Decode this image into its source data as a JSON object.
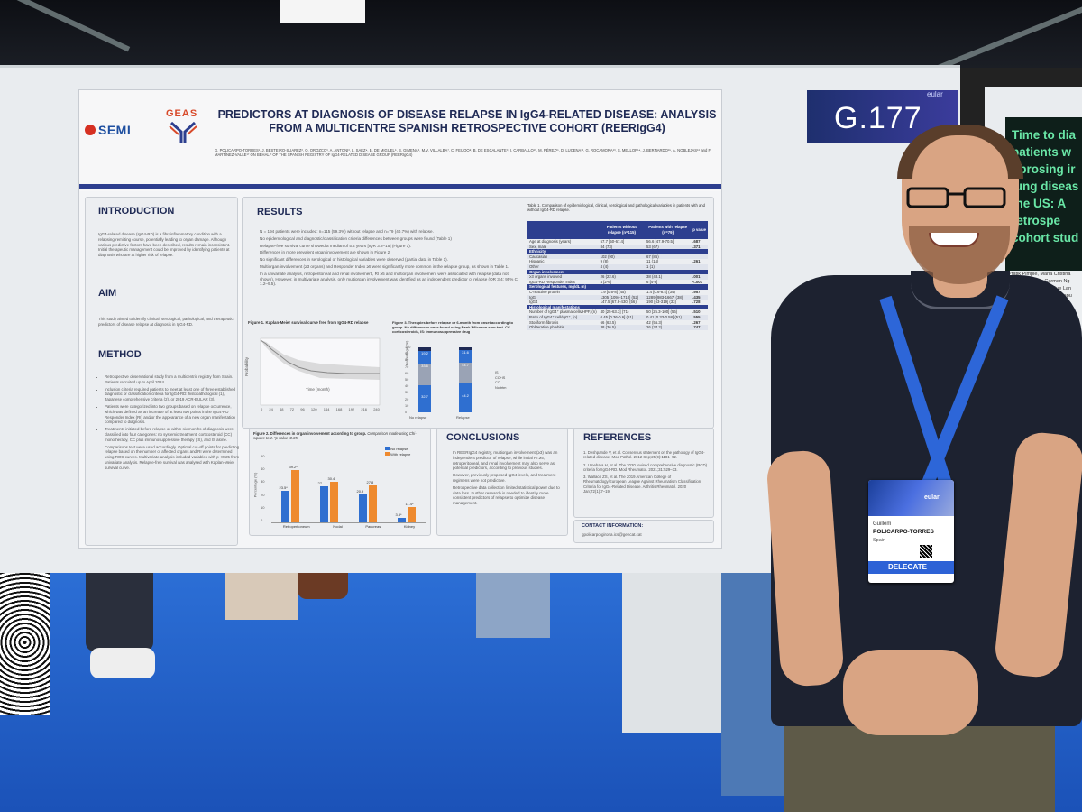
{
  "poster": {
    "title": "PREDICTORS AT DIAGNOSIS OF DISEASE RELAPSE IN IgG4-RELATED DISEASE: ANALYSIS FROM A MULTICENTRE SPANISH RETROSPECTIVE COHORT (REERIgG4)",
    "authors": "G. POLICARPO-TORRES¹, J. BESTEIRO-SUAREZ², O. OROZCO³, A. ANTONI³, L. SAEZ⁴, B. DE MIGUEL⁵, B. GIMENA⁶, M.V. VILLALBA⁷, C. FEIJOO⁸, B. DE ESCALANTE⁹, I. CARBALLO¹⁰, M. PÉREZ¹¹, D. LUCENA¹², G. ROCAMORA¹³, S. MELLOR¹⁴, J. BERNARDO¹⁵, A. NOBLEJAS¹⁶ and F. MARTÍNEZ-VALLE¹⁷ ON BEHALF OF THE SPANISH REGISTRY OF IgG4-RELATED DISEASE GROUP (REERIgG4)",
    "logos": {
      "semi": "SEMI",
      "geas": "GEAS"
    },
    "introduction": {
      "heading": "INTRODUCTION",
      "text": "IgG4-related disease (IgG4-RD) is a fibroinflammatory condition with a relapsing-remitting course, potentially leading to organ damage. Although various predictive factors have been described, results remain inconsistent. Initial therapeutic management could be improved by identifying patients at diagnosis who are at higher risk of relapse."
    },
    "aim": {
      "heading": "AIM",
      "text": "This study aimed to identify clinical, serological, pathological, and therapeutic predictors of disease relapse at diagnosis in IgG4-RD."
    },
    "method": {
      "heading": "METHOD",
      "items": [
        "Retrospective observational study from a multicentric registry from Spain. Patients recruited up to April 2024.",
        "Inclusion criteria required patients to meet at least one of three established diagnostic or classification criteria for IgG4-RD: histopathological (1), Japanese comprehensive criteria (2), or 2019 ACR-EULAR (3).",
        "Patients were categorized into two groups based on relapse occurrence, which was defined as an increase of at least two points in the IgG4-RD Responder Index (RI) and/or the appearance of a new organ manifestation compared to diagnosis.",
        "Treatments initiated before relapse or within six months of diagnosis were classified into four categories: no systemic treatment, corticosteroid (CC) monotherapy, CC plus immunosuppressive therapy (IS), and IS alone.",
        "Comparisons test were used accordingly. Optimal cut-off points for predicting relapse based on the number of affected organs and RI were determined using ROC curves. Multivariate analysis included variables with p <0.25 from univariate analysis. Relapse-free survival was analysed with Kaplan-Meier survival curve."
      ]
    },
    "results": {
      "heading": "RESULTS",
      "items": [
        "N = 194 patients were included: n=115 (59.3%) without relapse and n=79 (40.7%) with relapse.",
        "No epidemiological and diagnostic/classification criteria differences between groups were found (Table 1)",
        "Relapse-free survival curve showed a median of 5.4 years [IQR 3.8–15] (Figure 1).",
        "Differences in more prevalent organ involvement are shown in Figure 2.",
        "No significant differences in serological or histological variables were observed (partial data in Table 1).",
        "Multiorgan involvement (≥3 organs) and Responder Index ≥5 were significantly more common in the relapse group, as shown in Table 1.",
        "In a univariate analysis, retroperitoneal and renal involvement, RI ≥5 and multiorgan involvement were associated with relapse (data not shown). However, in multivariate analysis, only multiorgan involvement was identified as an independent predictor of relapse (OR 3.4; 95% CI 1.2–9.5)."
      ],
      "fig1_title": "Figure 1. Kaplan-Meier survival curve free from IgG4-RD relapse",
      "fig1_xlabel": "Time (month)",
      "fig1_ylabel": "Probability",
      "fig1_ticks": [
        "0",
        "24",
        "48",
        "72",
        "96",
        "120",
        "144",
        "168",
        "192",
        "216",
        "240"
      ],
      "fig3_title": "Figure 3. Therapies before relapse or 6-month from onset according to group. No differences were found using Rank Wilcoxon sum test. CC-corticosteroids, IS: immunosuppressive drug",
      "fig3_ylabel": "Percentage (%)",
      "fig3_ticks": [
        "100",
        "90",
        "80",
        "70",
        "60",
        "50",
        "40",
        "30",
        "20",
        "10",
        "0"
      ],
      "fig3_bars": [
        {
          "label": "No relapse",
          "segments": [
            "19.2",
            "33.6",
            "32.7"
          ]
        },
        {
          "label": "Relapse",
          "segments": [
            "31.6",
            "44.7",
            "44.2"
          ]
        }
      ],
      "fig3_legend": [
        "IS",
        "CC+IS",
        "CC",
        "No trtm"
      ],
      "fig2_title": "Figure 2. Differences in organ involvement according to group.",
      "fig2_note": "Comparison made using Chi-square test. *p value<0.05",
      "fig2_ylabel": "Percentage (%)",
      "fig2_ticks": [
        "50",
        "40",
        "30",
        "20",
        "10",
        "0"
      ],
      "fig2_legend": [
        "No relapse",
        "With relapse"
      ],
      "fig2_groups": [
        {
          "label": "Retroperitoneum",
          "a": "23.5*",
          "b": "39.2*"
        },
        {
          "label": "Nodal",
          "a": "27",
          "b": "30.4"
        },
        {
          "label": "Pancreas",
          "a": "20.9",
          "b": "27.8"
        },
        {
          "label": "Kidney",
          "a": "3.5*",
          "b": "11.4*"
        }
      ]
    },
    "table": {
      "caption": "Table 1. Comparison of epidemiological, clinical, serological and pathological variables in patients with and without IgG4-RD relapse.",
      "headers": [
        "",
        "Patients without relapse (n=115)",
        "Patients with relapse (n=79)",
        "p value"
      ],
      "rows": [
        [
          "Age at diagnosis (years)",
          "57.7 [50-67.4]",
          "56.6 [47.9-70.5]",
          ".687"
        ],
        [
          "Sex, male",
          "84 (73)",
          "53 (67)",
          ".371"
        ],
        [
          "Ethnicity",
          "",
          "",
          ""
        ],
        [
          "Caucasian",
          "102 (90)",
          "67 (85)",
          ""
        ],
        [
          "Hispanic",
          "9 (8)",
          "11 (14)",
          ".261"
        ],
        [
          "Other",
          "4 (4)",
          "1 (1)",
          ""
        ],
        [
          "Organ involvement",
          "",
          "",
          ""
        ],
        [
          "≥3 organs involved",
          "26 (22.6)",
          "38 (48.1)",
          ".001"
        ],
        [
          "IgG4-RD Responder Index",
          "4 [2-6]",
          "6 [4-8]",
          "<.001"
        ],
        [
          "Serological features, mg/dL (n)",
          "",
          "",
          ""
        ],
        [
          "C-reactive protein",
          "1.9 [0.6-8] (45)",
          "1.4 [0.6-8.4] (34)",
          ".957"
        ],
        [
          "IgG",
          "1305 [1094-1710] (52)",
          "1289 [983-1667] (38)",
          ".435"
        ],
        [
          "IgG4",
          "147.5 [67.8-430] (56)",
          "190 [63-319] (33)",
          ".728"
        ],
        [
          "Histological manifestations",
          "",
          "",
          ""
        ],
        [
          "Number of IgG4⁺ plasma cells/HPF, (n)",
          "40 [25-63.3] (71)",
          "50 [25.3-100] (56)",
          ".510"
        ],
        [
          "Ratio of IgG4⁺ cell/IgG⁺, (n)",
          "0.45 [0.36-0.6] (61)",
          "0.41 [0.33-0.58] (51)",
          ".555"
        ],
        [
          "Storiform fibrosis",
          "66 (63.5)",
          "42 (55.3)",
          ".267"
        ],
        [
          "Obliterative phlebitis",
          "38 (36.5)",
          "26 (34.2)",
          ".747"
        ]
      ],
      "group_rows": [
        2,
        6,
        9,
        13
      ]
    },
    "conclusions": {
      "heading": "CONCLUSIONS",
      "items": [
        "In REERIgG4 registry, multiorgan involvement (≥3) was an independent predictor of relapse, while initial RI ≥5, retroperitoneal, and renal involvement may also serve as potential predictors, according to previous studies.",
        "However, previously proposed IgG4 levels, and treatment regimens were not predictive.",
        "Retrospective data collection limited statistical power due to data loss. Further research is needed to identify more consistent predictors of relapse to optimize disease management."
      ]
    },
    "references": {
      "heading": "REFERENCES",
      "items": [
        "1. Deshpande V, et al. Consensus statement on the pathology of IgG4-related disease. Mod Pathol. 2012 Sep;25(9):1181–92.",
        "2. Umehara H, et al. The 2020 revised comprehensive diagnostic (RCD) criteria for IgG4-RD. Mod Rheumatol. 2021;31:529–33.",
        "3. Wallace ZS, et al. The 2019 American College of Rheumatology/European League Against Rheumatism Classification Criteria for IgG4-Related Disease. Arthritis Rheumatol. 2020 Jan;72(1):7–19."
      ]
    },
    "contact": {
      "heading": "CONTACT INFORMATION:",
      "email": "gpolicarpo.girona.ics@gencat.cat"
    }
  },
  "booth": {
    "number": "G.177",
    "brand": "eular"
  },
  "next_poster": {
    "title": "Time to dia patients w fibrosing ir lung diseas the US: A retrospe cohort stud",
    "authors": "Pratik Pimple, Maria Cristina Martin Lavallee, Carmen Ng Steady Chasimpha, Sue Lan Yanni Fan, Madhu Kanakapu Michael Baldwin, Andrew H"
  },
  "badge": {
    "first": "Guillem",
    "last": "POLICARPO-TORRES",
    "country": "Spain",
    "role": "DELEGATE",
    "brand": "eular"
  },
  "colors": {
    "navy": "#1f2a55",
    "accent_bar": "#2d3f8f",
    "floor": "#2c6fd6",
    "bar_no_relapse": "#2f6fd0",
    "bar_relapse": "#ee8a2f"
  }
}
